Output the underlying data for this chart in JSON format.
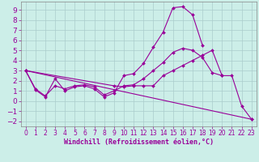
{
  "background_color": "#cceee8",
  "grid_color": "#aacccc",
  "line_color": "#990099",
  "xlabel": "Windchill (Refroidissement éolien,°C)",
  "xlabel_fontsize": 6.0,
  "ytick_fontsize": 6.5,
  "xtick_fontsize": 5.5,
  "ylim": [
    -2.5,
    9.8
  ],
  "xlim": [
    -0.5,
    23.5
  ],
  "yticks": [
    -2,
    -1,
    0,
    1,
    2,
    3,
    4,
    5,
    6,
    7,
    8,
    9
  ],
  "xticks": [
    0,
    1,
    2,
    3,
    4,
    5,
    6,
    7,
    8,
    9,
    10,
    11,
    12,
    13,
    14,
    15,
    16,
    17,
    18,
    19,
    20,
    21,
    22,
    23
  ],
  "line1_x": [
    0,
    1,
    2,
    3,
    4,
    5,
    6,
    7,
    8,
    9,
    10,
    11,
    12,
    13,
    14,
    15,
    16,
    17,
    18
  ],
  "line1_y": [
    3.0,
    1.1,
    0.4,
    2.2,
    1.0,
    1.4,
    1.5,
    1.2,
    0.4,
    0.8,
    2.5,
    2.7,
    3.7,
    5.3,
    6.8,
    9.2,
    9.3,
    8.5,
    5.5
  ],
  "line2_x": [
    0,
    1,
    2,
    3,
    4,
    5,
    6,
    7,
    8,
    9,
    10,
    11,
    12,
    13,
    14,
    15,
    16,
    17,
    18,
    19,
    20
  ],
  "line2_y": [
    3.0,
    1.2,
    0.5,
    1.5,
    1.2,
    1.5,
    1.6,
    1.4,
    0.6,
    1.0,
    1.5,
    1.6,
    2.2,
    3.0,
    3.8,
    4.8,
    5.2,
    5.0,
    4.3,
    2.8,
    2.5
  ],
  "line3_x": [
    0,
    9,
    10,
    11,
    12,
    13,
    14,
    15,
    16,
    17,
    18,
    19,
    20,
    21,
    22,
    23
  ],
  "line3_y": [
    3.0,
    1.5,
    1.4,
    1.5,
    1.5,
    1.5,
    2.5,
    3.0,
    3.5,
    4.0,
    4.5,
    5.0,
    2.5,
    2.5,
    -0.5,
    -1.8
  ],
  "line4_x": [
    0,
    23
  ],
  "line4_y": [
    3.0,
    -1.8
  ]
}
